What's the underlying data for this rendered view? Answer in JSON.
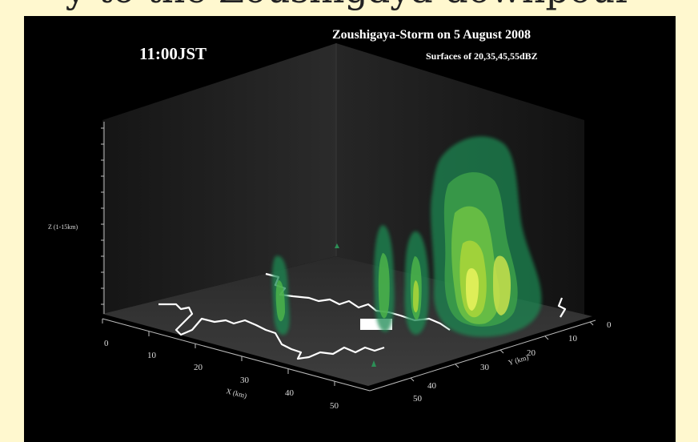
{
  "header_text": "y to the Zoushigaya downpour",
  "time_label": "11:00JST",
  "title": "Zoushigaya-Storm on 5 August 2008",
  "subtitle": "Surfaces of 20,35,45,55dBZ",
  "axes": {
    "z_label": "Z (1-15km)",
    "x_label": "X (km)",
    "y_label": "Y (km)",
    "x_ticks": [
      "0",
      "10",
      "20",
      "30",
      "40",
      "50"
    ],
    "y_ticks": [
      "0",
      "10",
      "20",
      "30",
      "40",
      "50"
    ]
  },
  "colors": {
    "background": "#000000",
    "page": "#fff8cf",
    "echo_outer": "#1f8a52",
    "echo_mid": "#4fb64a",
    "echo_inner": "#a6d43a",
    "echo_core": "#e2ef5a",
    "coastline": "#ffffff"
  }
}
